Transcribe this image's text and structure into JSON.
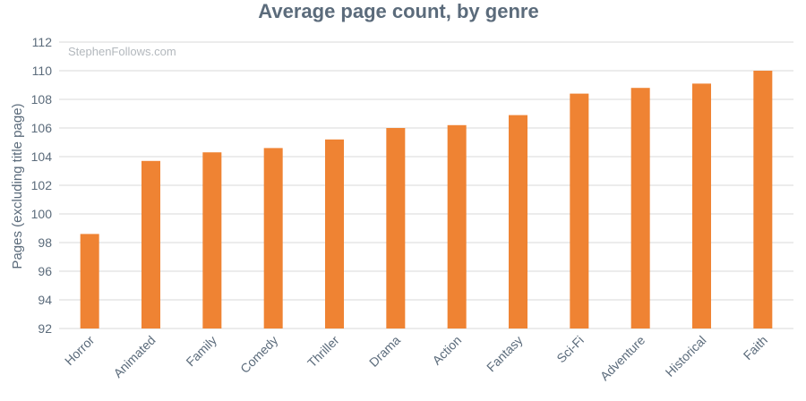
{
  "chart_data": {
    "type": "bar",
    "title": "Average page count, by genre",
    "watermark": "StephenFollows.com",
    "xlabel": "",
    "ylabel": "Pages (excluding title page)",
    "ylim": [
      92,
      112
    ],
    "yticks": [
      92,
      94,
      96,
      98,
      100,
      102,
      104,
      106,
      108,
      110,
      112
    ],
    "grid": true,
    "categories": [
      "Horror",
      "Animated",
      "Family",
      "Comedy",
      "Thriller",
      "Drama",
      "Action",
      "Fantasy",
      "Sci-Fi",
      "Adventure",
      "Historical",
      "Faith"
    ],
    "values": [
      98.6,
      103.7,
      104.3,
      104.6,
      105.2,
      106.0,
      106.2,
      106.9,
      108.4,
      108.8,
      109.1,
      110.0
    ],
    "bar_color": "#ef8333"
  }
}
